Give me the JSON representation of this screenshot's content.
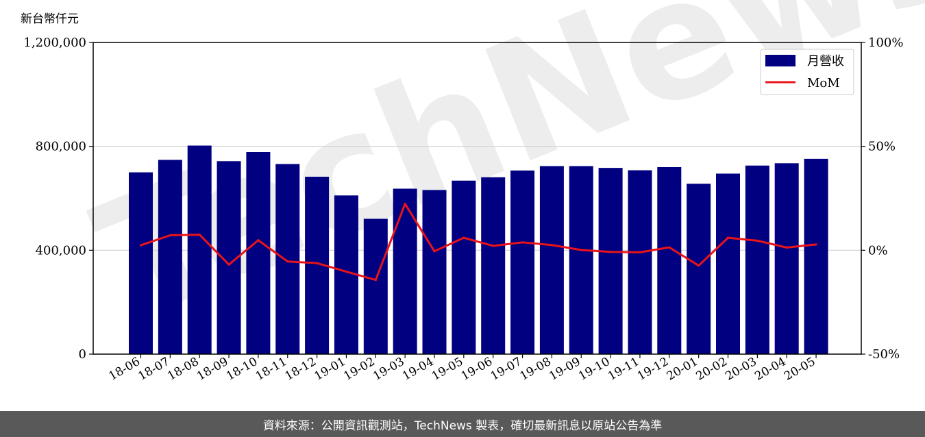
{
  "chart_data": {
    "type": "bar",
    "unit_label": "新台幣仟元",
    "categories": [
      "18-06",
      "18-07",
      "18-08",
      "18-09",
      "18-10",
      "18-11",
      "18-12",
      "19-01",
      "19-02",
      "19-03",
      "19-04",
      "19-05",
      "19-06",
      "19-07",
      "19-08",
      "19-09",
      "19-10",
      "19-11",
      "19-12",
      "20-01",
      "20-02",
      "20-03",
      "20-04",
      "20-05"
    ],
    "series": [
      {
        "name": "月營收",
        "kind": "bar",
        "axis": "left",
        "color": "#000080",
        "values": [
          700000,
          748000,
          803000,
          743000,
          778000,
          732000,
          683000,
          611000,
          521000,
          637000,
          632000,
          668000,
          681000,
          707000,
          724000,
          724000,
          717000,
          708000,
          720000,
          656000,
          695000,
          726000,
          735000,
          752000
        ]
      },
      {
        "name": "MoM",
        "kind": "line",
        "axis": "right",
        "color": "#e8141a",
        "values": [
          2.4,
          7.2,
          7.5,
          -6.9,
          4.8,
          -5.4,
          -6.2,
          -10.3,
          -14.3,
          22.3,
          -0.5,
          6.0,
          2.1,
          3.8,
          2.5,
          0.1,
          -0.8,
          -1.0,
          1.4,
          -7.4,
          6.0,
          4.6,
          1.3,
          2.8
        ]
      }
    ],
    "ylim_left": [
      0,
      1200000
    ],
    "yticks_left": [
      "0",
      "400,000",
      "800,000",
      "1,200,000"
    ],
    "ylim_right": [
      -50,
      100
    ],
    "yticks_right": [
      "-50%",
      "0%",
      "50%",
      "100%"
    ],
    "grid": "horizontal",
    "legend_position": "top-right"
  },
  "watermark": "TechNews",
  "footer_text": "資料來源：公開資訊觀測站，TechNews 製表，確切最新訊息以原站公告為準"
}
